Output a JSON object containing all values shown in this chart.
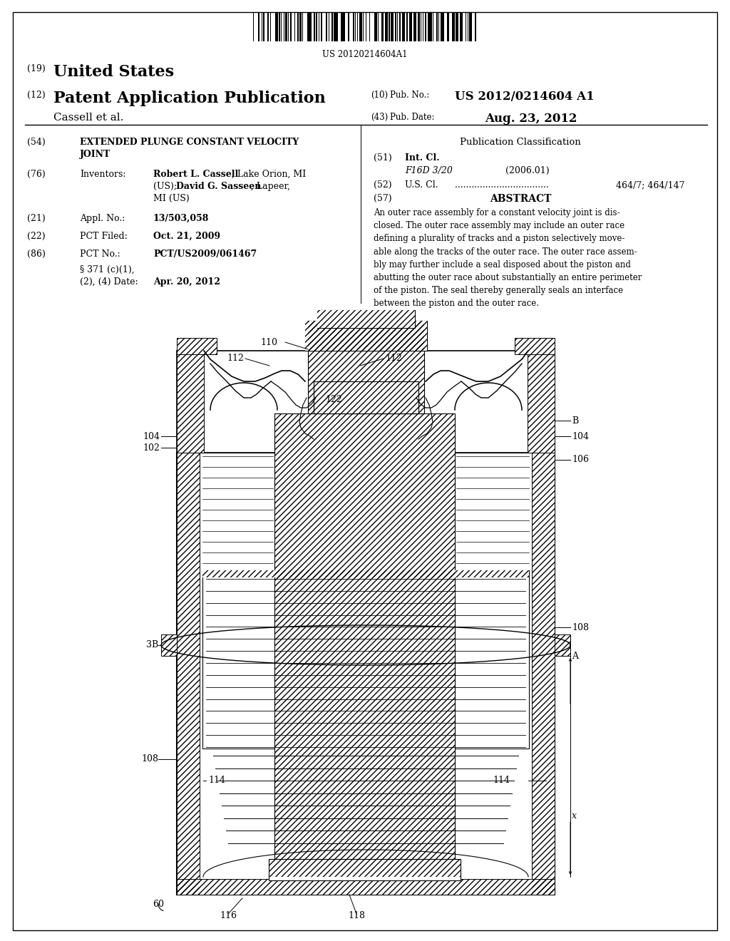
{
  "barcode_text": "US 20120214604A1",
  "pub_no": "US 2012/0214604 A1",
  "pub_date": "Aug. 23, 2012",
  "title_line1": "EXTENDED PLUNGE CONSTANT VELOCITY",
  "title_line2": "JOINT",
  "inv_bold1": "Robert L. Cassell",
  "inv_text1": ", Lake Orion, MI",
  "inv_text2": "(US); ",
  "inv_bold2": "David G. Sasseen",
  "inv_text3": ", Lapeer,",
  "inv_text4": "MI (US)",
  "appl_val": "13/503,058",
  "pct_filed_val": "Oct. 21, 2009",
  "pct_no_val": "PCT/US2009/061467",
  "section371_val": "Apr. 20, 2012",
  "int_cl_code": "F16D 3/20",
  "int_cl_year": "(2006.01)",
  "us_cl_val": "464/7; 464/147",
  "abstract_text": "An outer race assembly for a constant velocity joint is dis-\nclosed. The outer race assembly may include an outer race\ndefining a plurality of tracks and a piston selectively move-\nable along the tracks of the outer race. The outer race assem-\nbly may further include a seal disposed about the piston and\nabutting the outer race about substantially an entire perimeter\nof the piston. The seal thereby generally seals an interface\nbetween the piston and the outer race.",
  "bg_color": "#ffffff"
}
